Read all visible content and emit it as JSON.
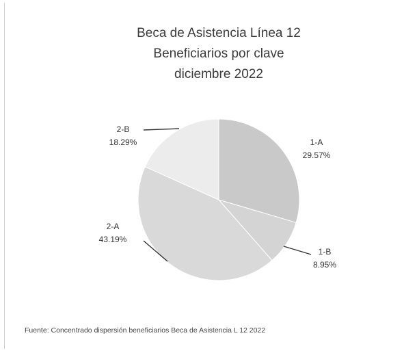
{
  "chart_data": {
    "type": "pie",
    "title": "Beca de Asistencia Línea 12",
    "subtitle": "Beneficiarios por clave",
    "period": "diciembre 2022",
    "categories": [
      "1-A",
      "1-B",
      "2-A",
      "2-B"
    ],
    "values": [
      29.57,
      8.95,
      43.19,
      18.29
    ],
    "value_labels": [
      "29.57%",
      "8.95%",
      "43.19%",
      "18.29%"
    ],
    "colors": [
      "#c9c9c9",
      "#d4d4d4",
      "#d9d9d9",
      "#ececec"
    ]
  },
  "source": "Fuente: Concentrado dispersión beneficiarios Beca de Asistencia L 12 2022"
}
